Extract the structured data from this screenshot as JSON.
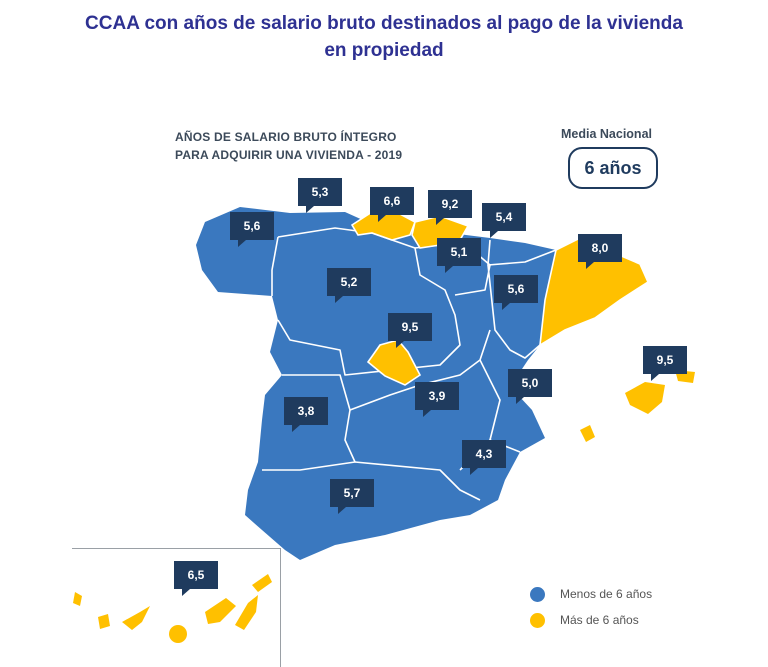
{
  "title_line1": "CCAA con años de salario bruto destinados al pago de la vivienda",
  "title_line2": "en propiedad",
  "subtitle_line1": "AÑOS DE SALARIO BRUTO ÍNTEGRO",
  "subtitle_line2": "PARA ADQUIRIR UNA VIVIENDA - 2019",
  "national_label": "Media Nacional",
  "national_value": "6 años",
  "colors": {
    "blue": "#3a78bf",
    "yellow": "#ffc000",
    "callout": "#1f3b5e",
    "title": "#2e3192"
  },
  "legend": [
    {
      "label": "Menos de 6 años",
      "color": "#3a78bf"
    },
    {
      "label": "Más de 6 años",
      "color": "#ffc000"
    }
  ],
  "regions": [
    {
      "id": "galicia",
      "value": "5,6",
      "category": "below"
    },
    {
      "id": "asturias",
      "value": "5,3",
      "category": "below"
    },
    {
      "id": "cantabria",
      "value": "6,6",
      "category": "above"
    },
    {
      "id": "pais-vasco",
      "value": "9,2",
      "category": "above"
    },
    {
      "id": "navarra",
      "value": "5,4",
      "category": "below"
    },
    {
      "id": "la-rioja",
      "value": "5,1",
      "category": "below"
    },
    {
      "id": "castilla-leon",
      "value": "5,2",
      "category": "below"
    },
    {
      "id": "aragon",
      "value": "5,6",
      "category": "below"
    },
    {
      "id": "cataluna",
      "value": "8,0",
      "category": "above"
    },
    {
      "id": "madrid",
      "value": "9,5",
      "category": "above"
    },
    {
      "id": "extremadura",
      "value": "3,8",
      "category": "below"
    },
    {
      "id": "castilla-la-mancha",
      "value": "3,9",
      "category": "below"
    },
    {
      "id": "comunidad-valenciana",
      "value": "5,0",
      "category": "below"
    },
    {
      "id": "murcia",
      "value": "4,3",
      "category": "below"
    },
    {
      "id": "andalucia",
      "value": "5,7",
      "category": "below"
    },
    {
      "id": "baleares",
      "value": "9,5",
      "category": "above"
    },
    {
      "id": "canarias",
      "value": "6,5",
      "category": "above"
    }
  ]
}
